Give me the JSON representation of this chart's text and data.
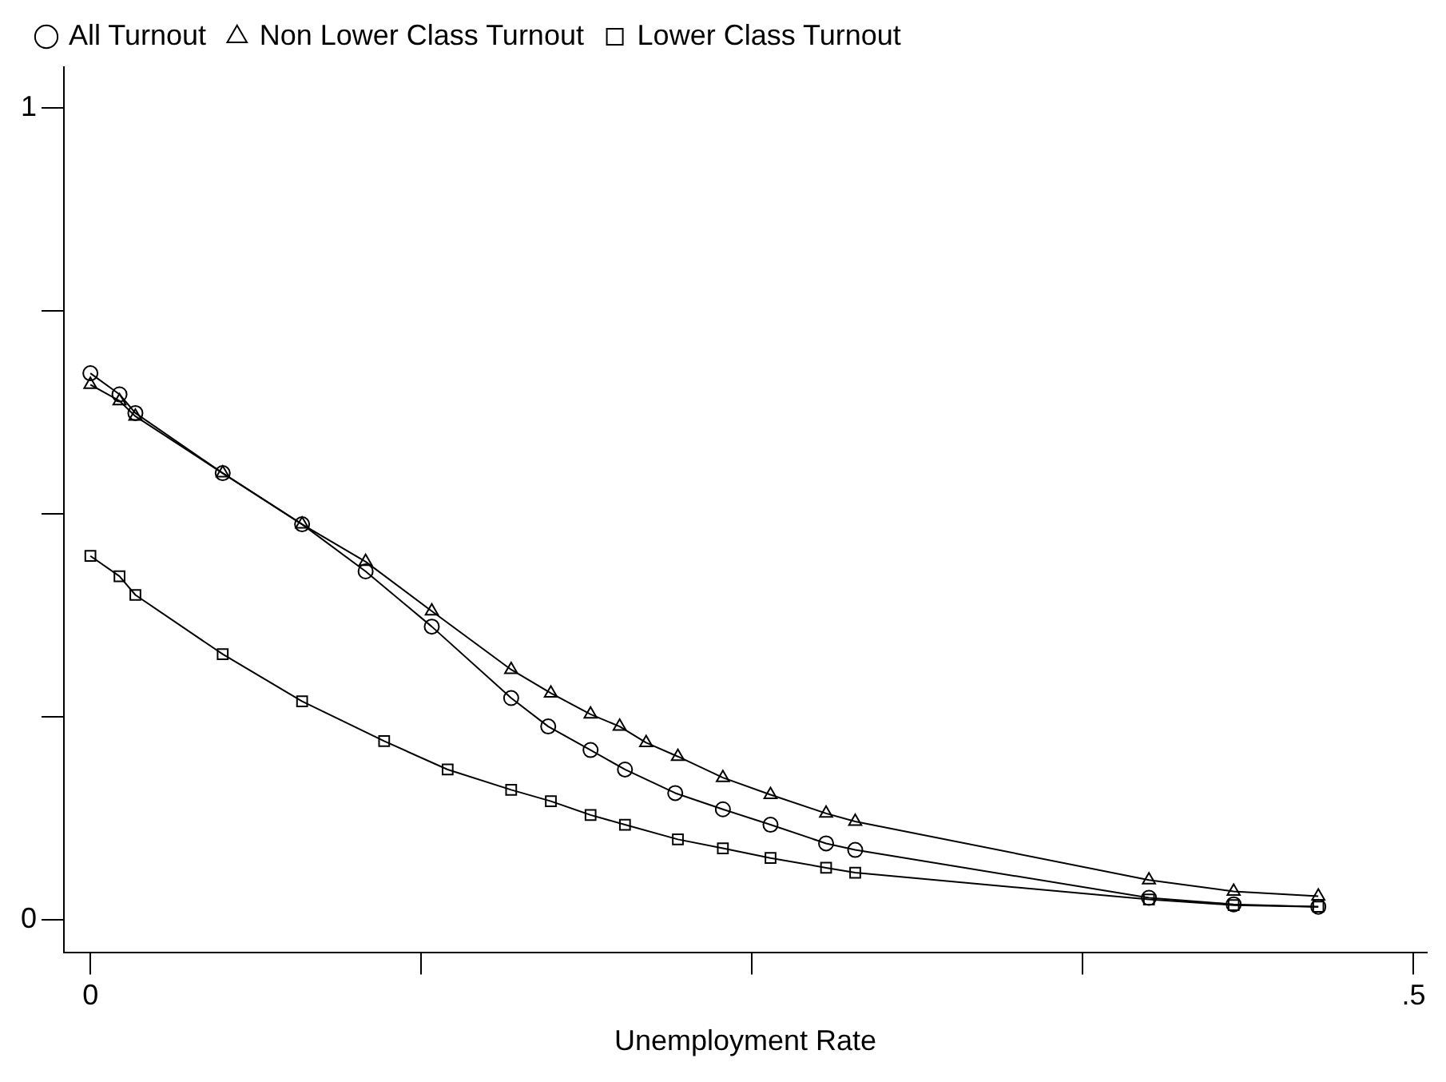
{
  "chart_data": {
    "type": "line",
    "xlabel": "Unemployment Rate",
    "legend": "top",
    "grid": false,
    "line_style": "solid",
    "xlim": [
      -0.01,
      0.505
    ],
    "xticks": [
      0,
      {
        "value": 0.125,
        "label": null
      },
      {
        "value": 0.25,
        "label": null
      },
      {
        "value": 0.375,
        "label": null
      },
      {
        "value": 0.5,
        "label": ".5"
      }
    ],
    "ylim": [
      -0.04,
      1.05
    ],
    "yticks": [
      0,
      {
        "value": 0.25,
        "label": null
      },
      {
        "value": 0.5,
        "label": null
      },
      {
        "value": 0.75,
        "label": null
      },
      1
    ],
    "series": [
      {
        "name": "All Turnout",
        "color": "#000000",
        "marker": "circle",
        "x": [
          0,
          0.011,
          0.017,
          0.05,
          0.08,
          0.104,
          0.129,
          0.159,
          0.173,
          0.189,
          0.202,
          0.221,
          0.239,
          0.257,
          0.278,
          0.289,
          0.4,
          0.432,
          0.464
        ],
        "values": [
          0.673,
          0.647,
          0.624,
          0.55,
          0.487,
          0.429,
          0.361,
          0.273,
          0.238,
          0.209,
          0.185,
          0.156,
          0.136,
          0.117,
          0.094,
          0.086,
          0.027,
          0.019,
          0.016
        ]
      },
      {
        "name": "Non Lower Class Turnout",
        "color": "#000000",
        "marker": "triangle",
        "x": [
          0,
          0.011,
          0.017,
          0.05,
          0.08,
          0.104,
          0.129,
          0.159,
          0.174,
          0.189,
          0.2,
          0.21,
          0.222,
          0.239,
          0.257,
          0.278,
          0.289,
          0.4,
          0.432,
          0.464
        ],
        "values": [
          0.659,
          0.639,
          0.62,
          0.55,
          0.487,
          0.441,
          0.38,
          0.308,
          0.279,
          0.253,
          0.238,
          0.218,
          0.201,
          0.175,
          0.154,
          0.131,
          0.121,
          0.049,
          0.035,
          0.029
        ]
      },
      {
        "name": "Lower Class Turnout",
        "color": "#000000",
        "marker": "square",
        "x": [
          0,
          0.011,
          0.017,
          0.05,
          0.08,
          0.111,
          0.135,
          0.159,
          0.174,
          0.189,
          0.202,
          0.222,
          0.239,
          0.257,
          0.278,
          0.289,
          0.4,
          0.432,
          0.464
        ],
        "values": [
          0.448,
          0.423,
          0.4,
          0.327,
          0.269,
          0.22,
          0.185,
          0.16,
          0.146,
          0.129,
          0.117,
          0.099,
          0.088,
          0.076,
          0.064,
          0.058,
          0.025,
          0.018,
          0.016
        ]
      }
    ]
  }
}
